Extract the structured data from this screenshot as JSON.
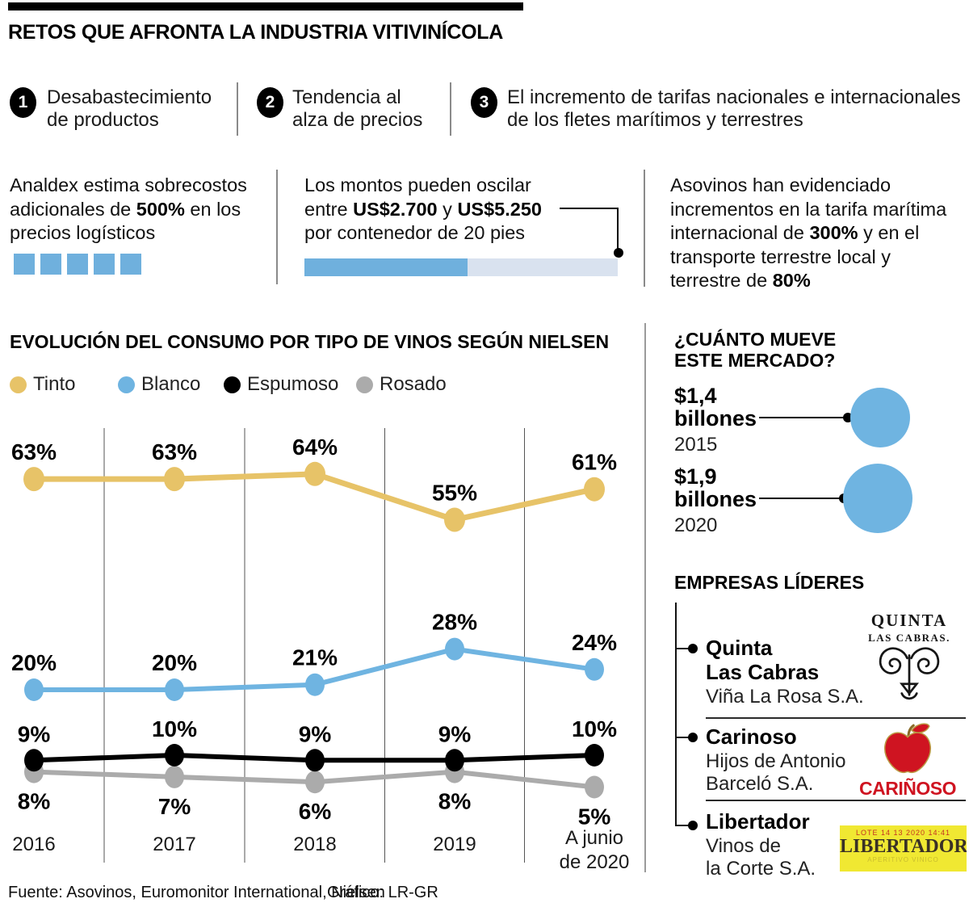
{
  "header": {
    "title": "RETOS QUE AFRONTA LA INDUSTRIA VITIVINÍCOLA"
  },
  "challenges": [
    {
      "number": "1",
      "lines": [
        "Desabastecimiento",
        "de productos"
      ]
    },
    {
      "number": "2",
      "lines": [
        "Tendencia al",
        "alza de precios"
      ]
    },
    {
      "number": "3",
      "lines": [
        "El incremento de tarifas nacionales e internacionales",
        "de los fletes marítimos y terrestres"
      ]
    }
  ],
  "stats": [
    {
      "lines": [
        [
          {
            "t": "Analdex estima sobrecostos"
          }
        ],
        [
          {
            "t": "adicionales de "
          },
          {
            "t": "500%",
            "b": true
          },
          {
            "t": " en los"
          }
        ],
        [
          {
            "t": "precios logísticos"
          }
        ]
      ],
      "squares": 5
    },
    {
      "lines": [
        [
          {
            "t": "Los montos pueden oscilar"
          }
        ],
        [
          {
            "t": "entre "
          },
          {
            "t": "US$2.700",
            "b": true
          },
          {
            "t": " y "
          },
          {
            "t": "US$5.250",
            "b": true
          }
        ],
        [
          {
            "t": "por contenedor de 20 pies"
          }
        ]
      ],
      "bar_fill_percent": 52
    },
    {
      "lines": [
        [
          {
            "t": "Asovinos han evidenciado"
          }
        ],
        [
          {
            "t": "incrementos en la tarifa marítima"
          }
        ],
        [
          {
            "t": "internacional de "
          },
          {
            "t": "300%",
            "b": true
          },
          {
            "t": " y en el"
          }
        ],
        [
          {
            "t": "transporte terrestre local y"
          }
        ],
        [
          {
            "t": "terrestre de "
          },
          {
            "t": "80%",
            "b": true
          }
        ]
      ]
    }
  ],
  "chart_data": {
    "type": "line",
    "title": "EVOLUCIÓN DEL CONSUMO POR TIPO DE VINOS SEGÚN NIELSEN",
    "categories": [
      "2016",
      "2017",
      "2018",
      "2019",
      "A junio\nde 2020"
    ],
    "series": [
      {
        "name": "Tinto",
        "color": "#e7c368",
        "values": [
          63,
          63,
          64,
          55,
          61
        ]
      },
      {
        "name": "Blanco",
        "color": "#6fb4e1",
        "values": [
          20,
          20,
          21,
          28,
          24
        ]
      },
      {
        "name": "Espumoso",
        "color": "#000000",
        "values": [
          9,
          10,
          9,
          9,
          10
        ]
      },
      {
        "name": "Rosado",
        "color": "#ababab",
        "values": [
          8,
          7,
          6,
          8,
          5
        ]
      }
    ],
    "value_suffix": "%",
    "ylim": [
      0,
      70
    ],
    "grid": "vertical-between-categories",
    "legend_position": "top"
  },
  "market": {
    "title_lines": [
      "¿CUÁNTO MUEVE",
      "ESTE MERCADO?"
    ],
    "items": [
      {
        "value": "$1,4",
        "unit": "billones",
        "year": "2015"
      },
      {
        "value": "$1,9",
        "unit": "billones",
        "year": "2020"
      }
    ]
  },
  "companies": {
    "title": "EMPRESAS LÍDERES",
    "items": [
      {
        "name_lines": [
          "Quinta",
          "Las Cabras"
        ],
        "company_lines": [
          "Viña La Rosa S.A."
        ],
        "logo_text": "QUINTA",
        "logo_subtext": "LAS CABRAS."
      },
      {
        "name_lines": [
          "Carinoso"
        ],
        "company_lines": [
          "Hijos de Antonio",
          "Barceló S.A."
        ],
        "logo_text": "CARIÑOSO"
      },
      {
        "name_lines": [
          "Libertador"
        ],
        "company_lines": [
          "Vinos de",
          "la Corte S.A."
        ],
        "logo_stamp": "LOTE 14 13 2020 14:41",
        "logo_text": "LIBERTADOR",
        "logo_subtext": "APERITIVO VINICO"
      }
    ]
  },
  "footer": {
    "source": "Fuente: Asovinos, Euromonitor International, Nielsen",
    "credit": "Gráfico: LR-GR"
  },
  "colors": {
    "accent_blue": "#6fb0dd",
    "light_blue": "#d9e2ef",
    "sky_blue": "#6fb4e1",
    "gold": "#e7c368",
    "gray": "#ababab",
    "logo_red": "#cf1421",
    "logo_yellow": "#f0e832"
  }
}
